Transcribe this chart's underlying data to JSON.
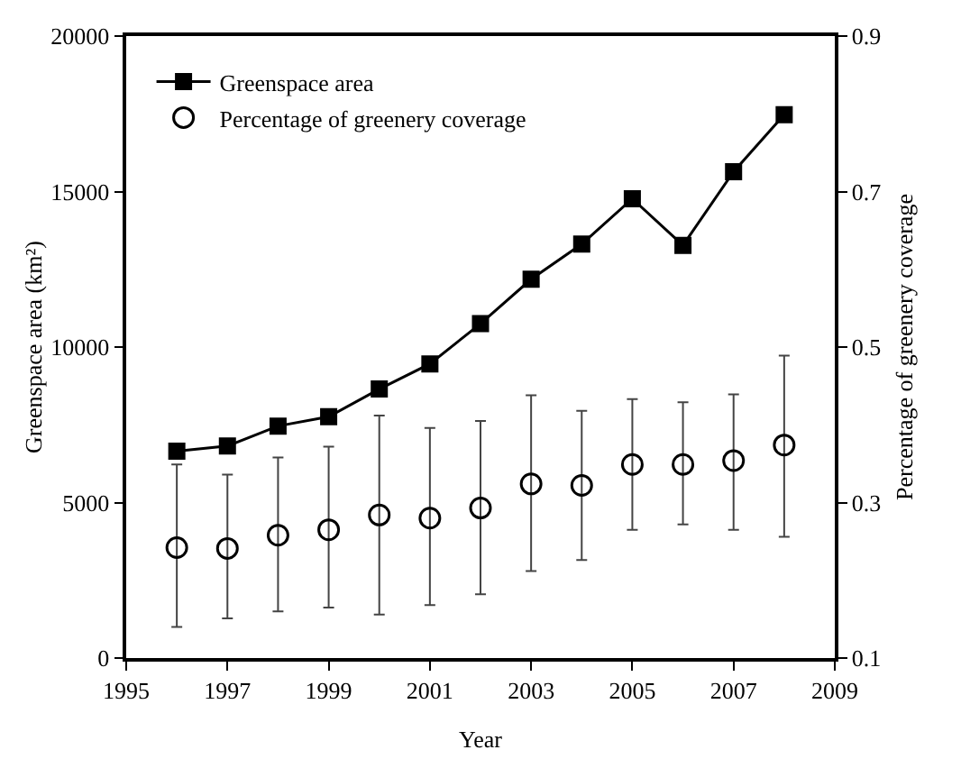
{
  "chart_data": {
    "type": "line",
    "xlabel": "Year",
    "ylabel": "Greenspace area (km²)",
    "y2label": "Percentage of greenery coverage",
    "x": [
      1996,
      1997,
      1998,
      1999,
      2000,
      2001,
      2002,
      2003,
      2004,
      2005,
      2006,
      2007,
      2008
    ],
    "xlim": [
      1995,
      2009
    ],
    "xticks": [
      1995,
      1997,
      1999,
      2001,
      2003,
      2005,
      2007,
      2009
    ],
    "ylim": [
      0,
      20000
    ],
    "yticks": [
      0,
      5000,
      10000,
      15000,
      20000
    ],
    "y2lim": [
      0.1,
      0.9
    ],
    "y2ticks": [
      0.1,
      0.3,
      0.5,
      0.7,
      0.9
    ],
    "grid": false,
    "legend": "top left",
    "series": [
      {
        "name": "Greenspace area",
        "marker": "square",
        "color": "#000000",
        "values": [
          6650,
          6820,
          7460,
          7760,
          8650,
          9460,
          10750,
          12180,
          13310,
          14770,
          13270,
          15640,
          17470
        ]
      },
      {
        "name": "Percentage of greenery coverage",
        "type": "scatter",
        "axis": "y2",
        "marker": "circle",
        "color": "#000000",
        "values": [
          0.242,
          0.241,
          0.258,
          0.265,
          0.284,
          0.28,
          0.293,
          0.324,
          0.322,
          0.349,
          0.349,
          0.354,
          0.374
        ],
        "errors": [
          [
            0.14,
            0.349
          ],
          [
            0.151,
            0.336
          ],
          [
            0.16,
            0.358
          ],
          [
            0.165,
            0.372
          ],
          [
            0.156,
            0.412
          ],
          [
            0.168,
            0.396
          ],
          [
            0.182,
            0.405
          ],
          [
            0.212,
            0.438
          ],
          [
            0.226,
            0.418
          ],
          [
            0.265,
            0.433
          ],
          [
            0.272,
            0.429
          ],
          [
            0.265,
            0.439
          ],
          [
            0.256,
            0.489
          ]
        ]
      }
    ]
  }
}
